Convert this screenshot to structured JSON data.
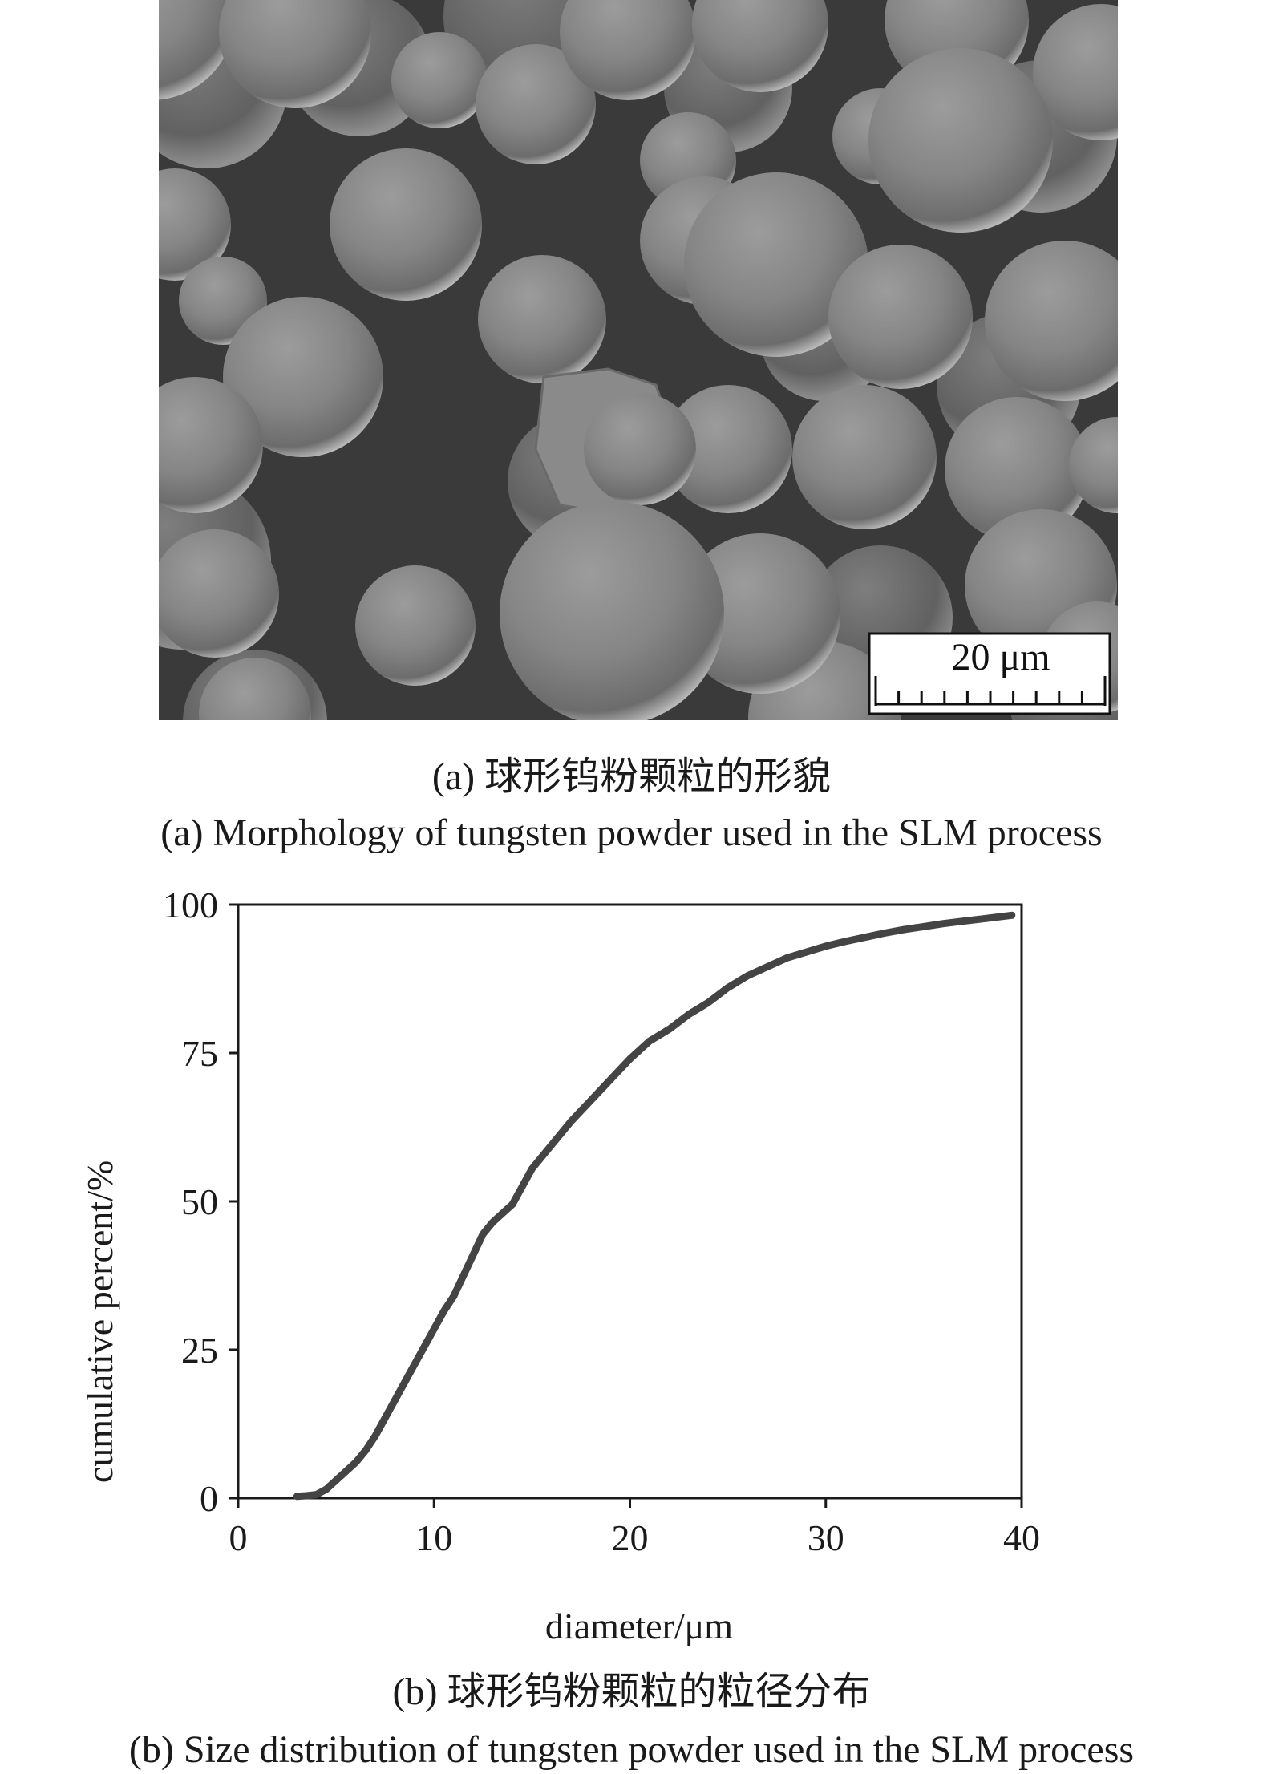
{
  "figure_a": {
    "caption_cn": "(a) 球形钨粉颗粒的形貌",
    "caption_en": "(a) Morphology of tungsten powder used in the SLM process",
    "scale_bar_label": "20 μm"
  },
  "figure_b": {
    "caption_cn": "(b) 球形钨粉颗粒的粒径分布",
    "caption_en": "(b) Size distribution of tungsten powder used in the SLM process"
  },
  "chart_data": {
    "type": "line",
    "xlabel": "diameter/μm",
    "ylabel": "cumulative percent/%",
    "xlim": [
      0,
      40
    ],
    "ylim": [
      0,
      100
    ],
    "xticks": [
      0,
      10,
      20,
      30,
      40
    ],
    "yticks": [
      0,
      25,
      50,
      75,
      100
    ],
    "grid": false,
    "legend": "none",
    "line_color": "#444444",
    "series": [
      {
        "x": [
          3.0,
          3.5,
          4.0,
          4.5,
          5.0,
          5.5,
          6.0,
          6.5,
          7.0,
          7.5,
          8.0,
          8.5,
          9.0,
          9.5,
          10.0,
          10.5,
          11.0,
          11.5,
          12.0,
          12.5,
          13.0,
          13.5,
          14.0,
          14.5,
          15.0,
          16.0,
          17.0,
          18.0,
          19.0,
          20.0,
          21.0,
          22.0,
          23.0,
          24.0,
          25.0,
          26.0,
          27.0,
          28.0,
          29.0,
          30.0,
          31.0,
          32.0,
          33.0,
          34.0,
          35.0,
          36.0,
          37.0,
          38.0,
          39.0,
          39.5
        ],
        "y": [
          0.3,
          0.4,
          0.6,
          1.5,
          3.0,
          4.5,
          6.0,
          8.0,
          10.5,
          13.5,
          16.5,
          19.5,
          22.5,
          25.5,
          28.5,
          31.5,
          34.0,
          37.5,
          41.0,
          44.5,
          46.5,
          48.0,
          49.5,
          52.5,
          55.5,
          59.5,
          63.5,
          67.0,
          70.5,
          74.0,
          77.0,
          79.0,
          81.5,
          83.5,
          86.0,
          88.0,
          89.5,
          91.0,
          92.0,
          93.0,
          93.8,
          94.5,
          95.2,
          95.8,
          96.3,
          96.8,
          97.2,
          97.6,
          98.0,
          98.2
        ]
      }
    ]
  }
}
